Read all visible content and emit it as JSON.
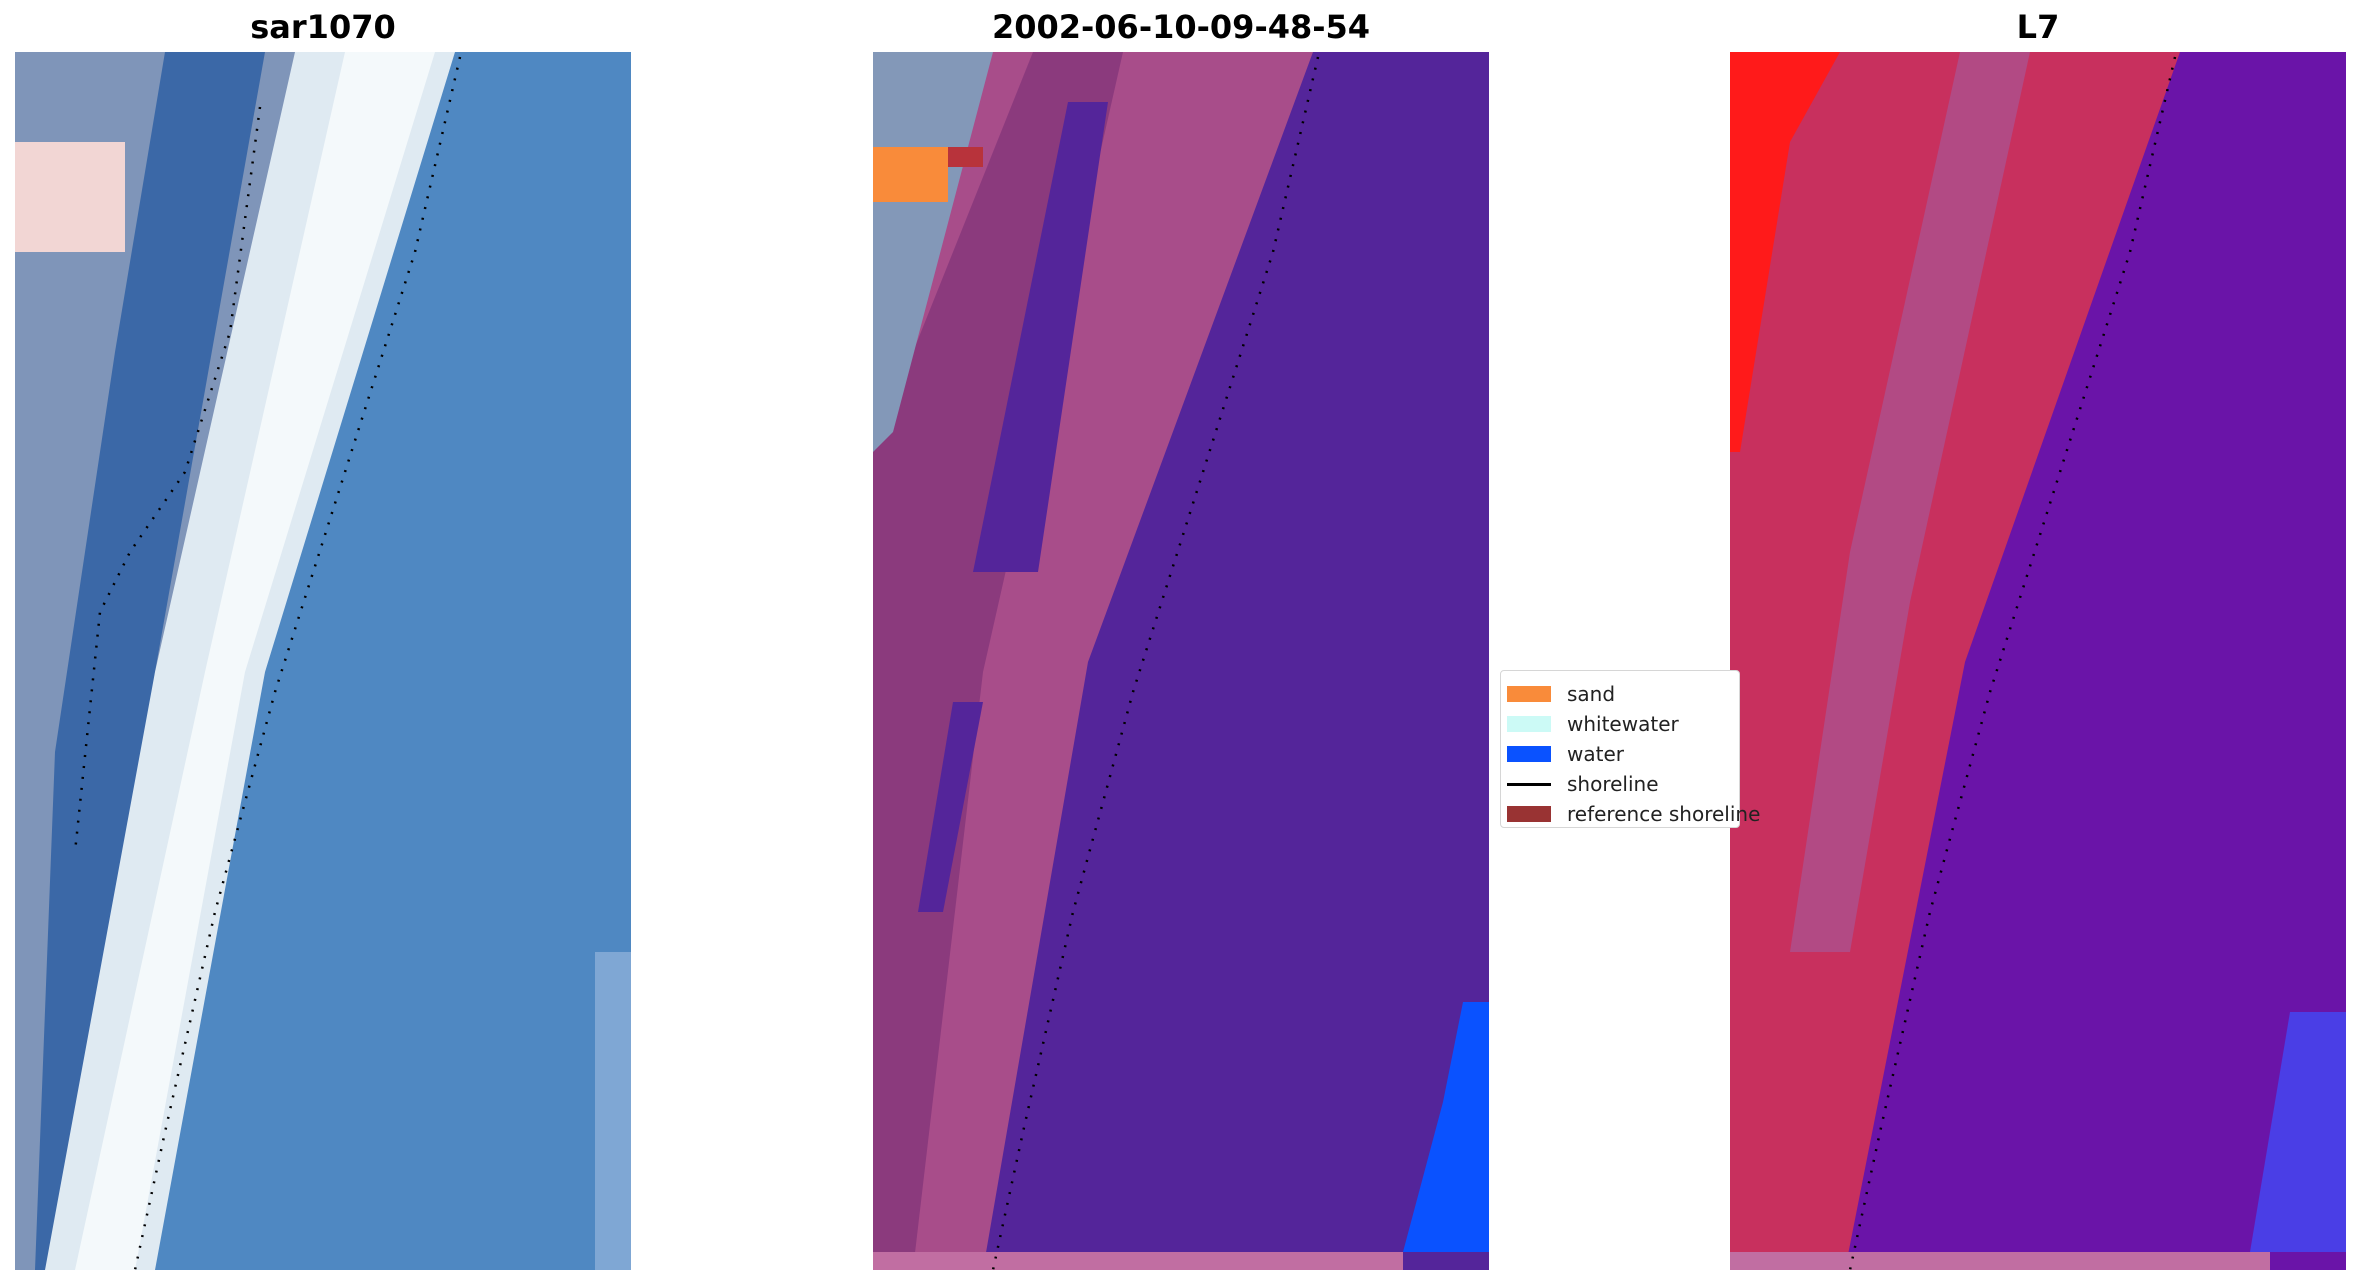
{
  "panels": [
    {
      "title": "sar1070"
    },
    {
      "title": "2002-06-10-09-48-54"
    },
    {
      "title": "L7"
    }
  ],
  "legend": {
    "items": [
      {
        "label": "sand",
        "color": "#f98b3a",
        "kind": "patch"
      },
      {
        "label": "whitewater",
        "color": "#ccfaf6",
        "kind": "patch"
      },
      {
        "label": "water",
        "color": "#0a52ff",
        "kind": "patch"
      },
      {
        "label": "shoreline",
        "color": "#000000",
        "kind": "line"
      },
      {
        "label": "reference shoreline",
        "color": "#993333",
        "kind": "patch"
      }
    ]
  },
  "colors": {
    "sar_water": "#4e86bf",
    "sar_surf": "#e8f2f8",
    "class_water_dark": "#54259a",
    "class_land": "#a84d8a",
    "l7_red": "#ff1a1a",
    "l7_purple": "#6a14a8"
  }
}
